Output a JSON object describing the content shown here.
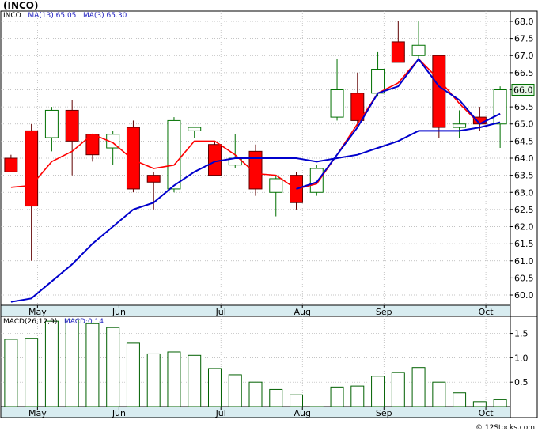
{
  "title": "(INCO)",
  "legend": {
    "symbol": "INCO",
    "ma13_label": "MA(13)",
    "ma13_value": "65.05",
    "ma3_label": "MA(3)",
    "ma3_value": "65.30"
  },
  "macd_legend": {
    "label": "MACD(26,12,9)",
    "value_label": "MACD:0.14"
  },
  "last_price_label": "66.0",
  "credit": "© 12Stocks.com",
  "colors": {
    "up": "#007000",
    "down": "#ff0000",
    "ma13": "#0000cc",
    "ma3": "#ff0000",
    "axis_band": "#d8ecf0",
    "grid": "#b0b0b0",
    "macd_bar": "#006000"
  },
  "chart_data": [
    {
      "type": "candlestick",
      "ylim": [
        59.7,
        68.3
      ],
      "yticks": [
        "60.0",
        "60.5",
        "61.0",
        "61.5",
        "62.0",
        "62.5",
        "63.0",
        "63.5",
        "64.0",
        "64.5",
        "65.0",
        "65.5",
        "66.0",
        "66.5",
        "67.0",
        "67.5",
        "68.0"
      ],
      "xtick_labels": [
        "May",
        "Jun",
        "Jul",
        "Aug",
        "Sep",
        "Oct"
      ],
      "xtick_positions": [
        1.3,
        5.3,
        10.3,
        14.3,
        18.3,
        23.3
      ],
      "candles": [
        {
          "open": 64.0,
          "high": 64.1,
          "low": 63.6,
          "close": 63.6
        },
        {
          "open": 64.8,
          "high": 65.0,
          "low": 61.0,
          "close": 62.6
        },
        {
          "open": 64.6,
          "high": 65.5,
          "low": 64.2,
          "close": 65.4
        },
        {
          "open": 65.4,
          "high": 65.7,
          "low": 63.5,
          "close": 64.5
        },
        {
          "open": 64.7,
          "high": 64.7,
          "low": 63.9,
          "close": 64.1
        },
        {
          "open": 64.3,
          "high": 64.8,
          "low": 63.8,
          "close": 64.7
        },
        {
          "open": 64.9,
          "high": 65.1,
          "low": 63.0,
          "close": 63.1
        },
        {
          "open": 63.5,
          "high": 63.6,
          "low": 62.5,
          "close": 63.3
        },
        {
          "open": 63.1,
          "high": 65.2,
          "low": 63.0,
          "close": 65.1
        },
        {
          "open": 64.8,
          "high": 64.9,
          "low": 64.6,
          "close": 64.9
        },
        {
          "open": 64.4,
          "high": 64.5,
          "low": 63.5,
          "close": 63.5
        },
        {
          "open": 63.8,
          "high": 64.7,
          "low": 63.7,
          "close": 64.0
        },
        {
          "open": 64.2,
          "high": 64.4,
          "low": 62.9,
          "close": 63.1
        },
        {
          "open": 63.0,
          "high": 63.5,
          "low": 62.3,
          "close": 63.4
        },
        {
          "open": 63.5,
          "high": 63.6,
          "low": 62.5,
          "close": 62.7
        },
        {
          "open": 63.0,
          "high": 63.8,
          "low": 62.9,
          "close": 63.7
        },
        {
          "open": 65.2,
          "high": 66.9,
          "low": 65.1,
          "close": 66.0
        },
        {
          "open": 65.9,
          "high": 66.5,
          "low": 64.9,
          "close": 65.1
        },
        {
          "open": 65.9,
          "high": 67.1,
          "low": 65.8,
          "close": 66.6
        },
        {
          "open": 67.4,
          "high": 68.0,
          "low": 66.8,
          "close": 66.8
        },
        {
          "open": 67.0,
          "high": 68.0,
          "low": 66.9,
          "close": 67.3
        },
        {
          "open": 67.0,
          "high": 67.0,
          "low": 64.6,
          "close": 64.9
        },
        {
          "open": 64.9,
          "high": 65.4,
          "low": 64.6,
          "close": 65.0
        },
        {
          "open": 65.2,
          "high": 65.5,
          "low": 64.8,
          "close": 65.0
        },
        {
          "open": 65.0,
          "high": 66.1,
          "low": 64.3,
          "close": 66.0
        }
      ],
      "series": [
        {
          "name": "MA(13)",
          "color": "#0000cc",
          "points": [
            [
              0,
              59.8
            ],
            [
              1,
              59.9
            ],
            [
              2,
              60.4
            ],
            [
              3,
              60.9
            ],
            [
              4,
              61.5
            ],
            [
              5,
              62.0
            ],
            [
              6,
              62.5
            ],
            [
              7,
              62.7
            ],
            [
              8,
              63.2
            ],
            [
              9,
              63.6
            ],
            [
              10,
              63.9
            ],
            [
              11,
              64.0
            ],
            [
              12,
              64.0
            ],
            [
              13,
              64.0
            ],
            [
              14,
              64.0
            ],
            [
              15,
              63.9
            ],
            [
              16,
              64.0
            ],
            [
              17,
              64.1
            ],
            [
              18,
              64.3
            ],
            [
              19,
              64.5
            ],
            [
              20,
              64.8
            ],
            [
              21,
              64.8
            ],
            [
              22,
              64.8
            ],
            [
              23,
              64.9
            ],
            [
              24,
              65.05
            ]
          ]
        },
        {
          "name": "MA(3)",
          "color": "#ff0000",
          "points": [
            [
              0,
              63.15
            ],
            [
              1,
              63.2
            ],
            [
              2,
              63.9
            ],
            [
              3,
              64.2
            ],
            [
              4,
              64.7
            ],
            [
              5,
              64.45
            ],
            [
              6,
              63.95
            ],
            [
              7,
              63.7
            ],
            [
              8,
              63.8
            ],
            [
              9,
              64.5
            ],
            [
              10,
              64.5
            ],
            [
              11,
              64.1
            ],
            [
              12,
              63.55
            ],
            [
              13,
              63.5
            ],
            [
              14,
              63.1
            ],
            [
              15,
              63.25
            ],
            [
              16,
              64.1
            ],
            [
              17,
              65.0
            ],
            [
              18,
              65.9
            ],
            [
              19,
              66.2
            ],
            [
              20,
              66.9
            ],
            [
              21,
              66.3
            ],
            [
              22,
              65.6
            ],
            [
              23,
              65.0
            ],
            [
              24,
              65.3
            ]
          ]
        }
      ],
      "ma13_blue_tail": [
        [
          14,
          63.1
        ],
        [
          15,
          63.3
        ],
        [
          16,
          64.1
        ],
        [
          17,
          64.9
        ],
        [
          18,
          65.9
        ],
        [
          19,
          66.1
        ],
        [
          20,
          66.9
        ],
        [
          21,
          66.1
        ],
        [
          22,
          65.7
        ],
        [
          23,
          65.0
        ],
        [
          24,
          65.3
        ]
      ]
    },
    {
      "type": "bar",
      "ylim": [
        0,
        1.85
      ],
      "yticks": [
        "0.5",
        "1.0",
        "1.5"
      ],
      "xtick_labels": [
        "May",
        "Jun",
        "Jul",
        "Aug",
        "Sep",
        "Oct"
      ],
      "values": [
        1.38,
        1.4,
        1.75,
        1.78,
        1.7,
        1.62,
        1.3,
        1.08,
        1.12,
        1.05,
        0.78,
        0.65,
        0.5,
        0.35,
        0.24,
        0.0,
        0.4,
        0.42,
        0.62,
        0.7,
        0.8,
        0.5,
        0.28,
        0.1,
        0.14
      ]
    }
  ]
}
